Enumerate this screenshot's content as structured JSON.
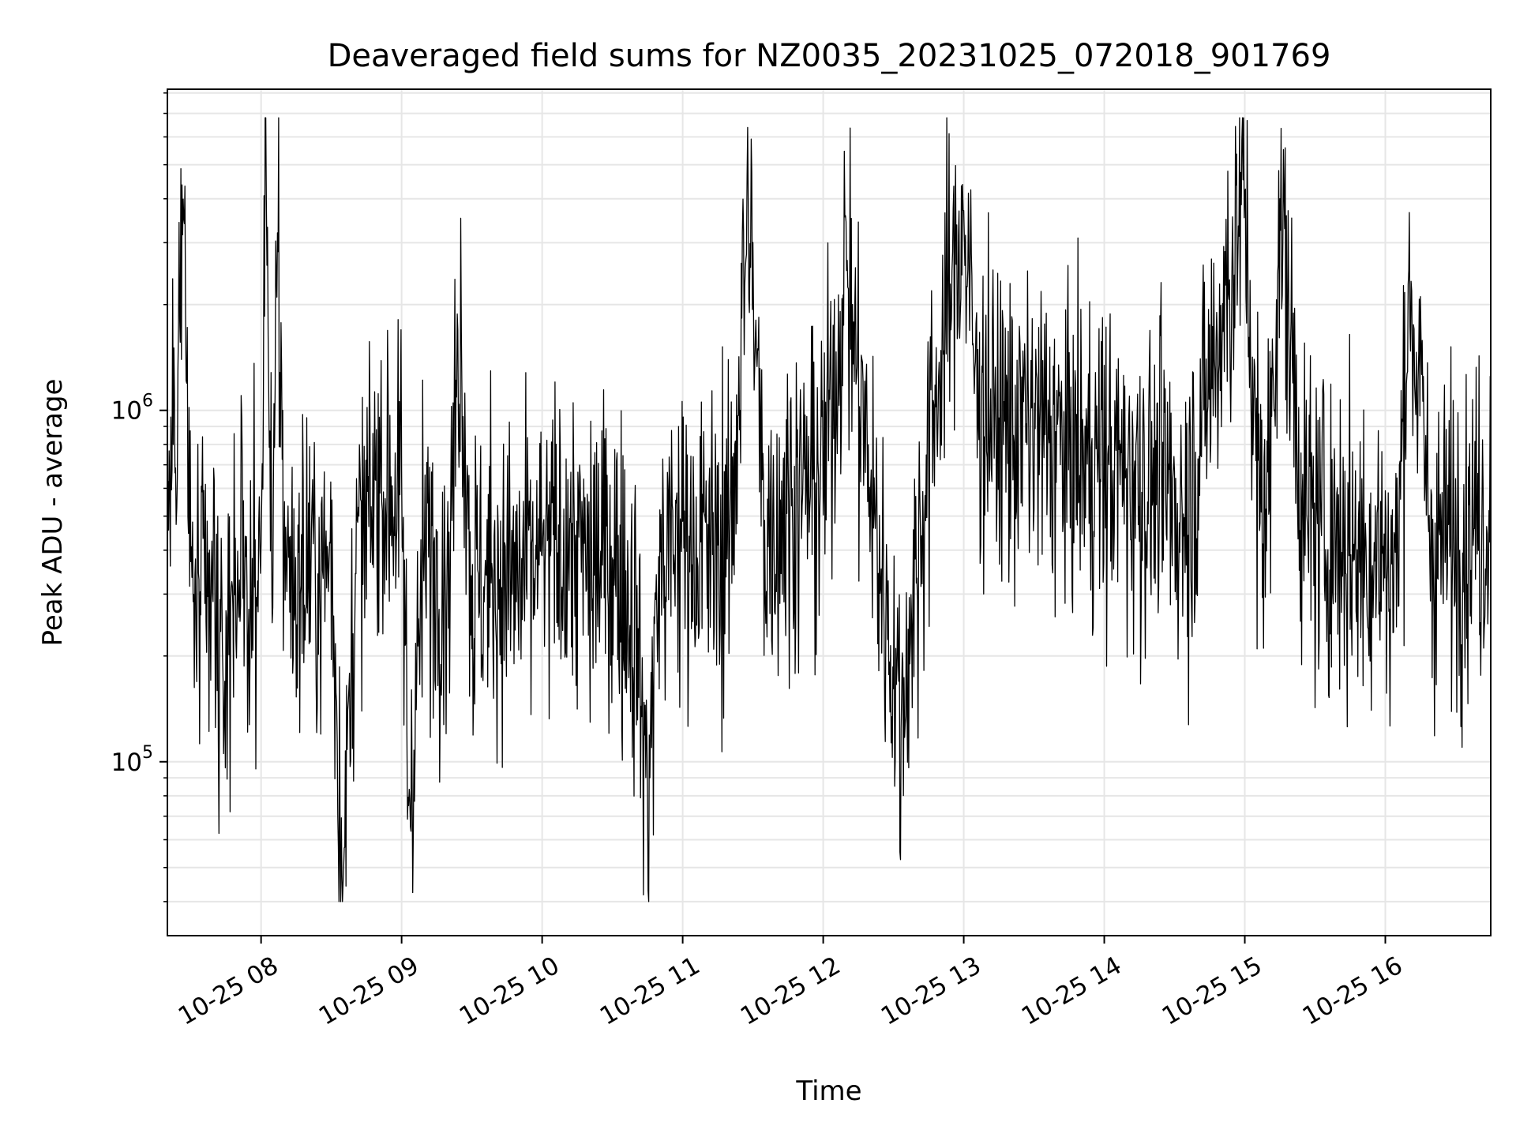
{
  "chart_data": {
    "type": "line",
    "title": "Deaveraged field sums for NZ0035_20231025_072018_901769",
    "xlabel": "Time",
    "ylabel": "Peak ADU - average",
    "yscale": "log",
    "xlim": [
      "2023-10-25 07:20",
      "2023-10-25 16:45"
    ],
    "ylim": [
      32000,
      8200000
    ],
    "grid": true,
    "x_ticks": [
      {
        "t": "2023-10-25 08:00",
        "label": "10-25 08"
      },
      {
        "t": "2023-10-25 09:00",
        "label": "10-25 09"
      },
      {
        "t": "2023-10-25 10:00",
        "label": "10-25 10"
      },
      {
        "t": "2023-10-25 11:00",
        "label": "10-25 11"
      },
      {
        "t": "2023-10-25 12:00",
        "label": "10-25 12"
      },
      {
        "t": "2023-10-25 13:00",
        "label": "10-25 13"
      },
      {
        "t": "2023-10-25 14:00",
        "label": "10-25 14"
      },
      {
        "t": "2023-10-25 15:00",
        "label": "10-25 15"
      },
      {
        "t": "2023-10-25 16:00",
        "label": "10-25 16"
      }
    ],
    "y_ticks": [
      {
        "value": 100000,
        "base": "10",
        "exp": "5"
      },
      {
        "value": 1000000,
        "base": "10",
        "exp": "6"
      }
    ],
    "series": [
      {
        "color": "#000000",
        "x": [
          "2023-10-25 07:20",
          "2023-10-25 07:27",
          "2023-10-25 07:30",
          "2023-10-25 07:38",
          "2023-10-25 07:40",
          "2023-10-25 07:43",
          "2023-10-25 07:50",
          "2023-10-25 07:55",
          "2023-10-25 08:00",
          "2023-10-25 08:02",
          "2023-10-25 08:05",
          "2023-10-25 08:07",
          "2023-10-25 08:10",
          "2023-10-25 08:15",
          "2023-10-25 08:20",
          "2023-10-25 08:25",
          "2023-10-25 08:30",
          "2023-10-25 08:35",
          "2023-10-25 08:40",
          "2023-10-25 08:45",
          "2023-10-25 08:50",
          "2023-10-25 08:55",
          "2023-10-25 09:00",
          "2023-10-25 09:03",
          "2023-10-25 09:10",
          "2023-10-25 09:20",
          "2023-10-25 09:25",
          "2023-10-25 09:30",
          "2023-10-25 09:40",
          "2023-10-25 09:50",
          "2023-10-25 10:00",
          "2023-10-25 10:10",
          "2023-10-25 10:20",
          "2023-10-25 10:30",
          "2023-10-25 10:40",
          "2023-10-25 10:45",
          "2023-10-25 10:50",
          "2023-10-25 11:00",
          "2023-10-25 11:10",
          "2023-10-25 11:20",
          "2023-10-25 11:28",
          "2023-10-25 11:35",
          "2023-10-25 11:45",
          "2023-10-25 12:00",
          "2023-10-25 12:10",
          "2023-10-25 12:20",
          "2023-10-25 12:33",
          "2023-10-25 12:45",
          "2023-10-25 12:55",
          "2023-10-25 13:00",
          "2023-10-25 13:05",
          "2023-10-25 13:15",
          "2023-10-25 13:30",
          "2023-10-25 13:45",
          "2023-10-25 14:00",
          "2023-10-25 14:15",
          "2023-10-25 14:25",
          "2023-10-25 14:35",
          "2023-10-25 14:45",
          "2023-10-25 15:00",
          "2023-10-25 15:05",
          "2023-10-25 15:10",
          "2023-10-25 15:15",
          "2023-10-25 15:25",
          "2023-10-25 15:35",
          "2023-10-25 15:50",
          "2023-10-25 16:00",
          "2023-10-25 16:05",
          "2023-10-25 16:10",
          "2023-10-25 16:20",
          "2023-10-25 16:30",
          "2023-10-25 16:40",
          "2023-10-25 16:45"
        ],
        "y": [
          380000,
          3500000,
          300000,
          250000,
          320000,
          150000,
          400000,
          280000,
          350000,
          6800000,
          250000,
          3200000,
          420000,
          300000,
          380000,
          320000,
          400000,
          45000,
          350000,
          450000,
          650000,
          600000,
          550000,
          75000,
          400000,
          350000,
          1900000,
          300000,
          350000,
          320000,
          380000,
          420000,
          350000,
          400000,
          250000,
          82000,
          350000,
          450000,
          400000,
          400000,
          3800000,
          450000,
          550000,
          650000,
          2500000,
          600000,
          130000,
          750000,
          2500000,
          3700000,
          1200000,
          900000,
          900000,
          750000,
          700000,
          650000,
          600000,
          500000,
          1200000,
          4200000,
          600000,
          550000,
          4000000,
          500000,
          450000,
          400000,
          380000,
          350000,
          2500000,
          400000,
          450000,
          500000,
          480000
        ],
        "detail_points_per_hour": 240,
        "range": {
          "min": 40000,
          "max": 6800000
        }
      }
    ]
  }
}
